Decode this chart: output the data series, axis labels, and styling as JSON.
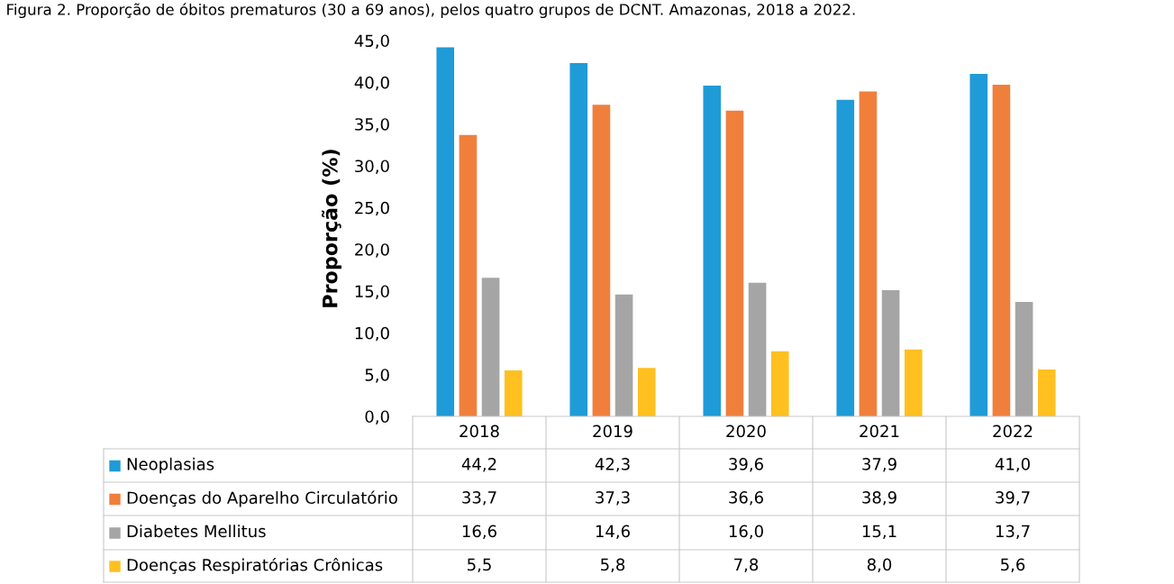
{
  "chart_data": {
    "type": "bar",
    "title": "Figura 2. Proporção de óbitos prematuros (30 a 69 anos), pelos quatro grupos de DCNT. Amazonas, 2018 a 2022.",
    "ylabel": "Proporção (%)",
    "categories": [
      "2018",
      "2019",
      "2020",
      "2021",
      "2022"
    ],
    "series": [
      {
        "name": "Neoplasias",
        "color": "#1f9bd7",
        "values": [
          44.2,
          42.3,
          39.6,
          37.9,
          41.0
        ],
        "value_labels": [
          "44,2",
          "42,3",
          "39,6",
          "37,9",
          "41,0"
        ]
      },
      {
        "name": "Doenças do Aparelho Circulatório",
        "color": "#f07f3c",
        "values": [
          33.7,
          37.3,
          36.6,
          38.9,
          39.7
        ],
        "value_labels": [
          "33,7",
          "37,3",
          "36,6",
          "38,9",
          "39,7"
        ]
      },
      {
        "name": "Diabetes Mellitus",
        "color": "#a5a5a5",
        "values": [
          16.6,
          14.6,
          16.0,
          15.1,
          13.7
        ],
        "value_labels": [
          "16,6",
          "14,6",
          "16,0",
          "15,1",
          "13,7"
        ]
      },
      {
        "name": "Doenças Respiratórias Crônicas",
        "color": "#ffc020",
        "values": [
          5.5,
          5.8,
          7.8,
          8.0,
          5.6
        ],
        "value_labels": [
          "5,5",
          "5,8",
          "7,8",
          "8,0",
          "5,6"
        ]
      }
    ],
    "ylim": [
      0,
      45
    ],
    "yticks": [
      {
        "value": 0,
        "label": "0,0"
      },
      {
        "value": 5,
        "label": "5,0"
      },
      {
        "value": 10,
        "label": "10,0"
      },
      {
        "value": 15,
        "label": "15,0"
      },
      {
        "value": 20,
        "label": "20,0"
      },
      {
        "value": 25,
        "label": "25,0"
      },
      {
        "value": 30,
        "label": "30,0"
      },
      {
        "value": 35,
        "label": "35,0"
      },
      {
        "value": 40,
        "label": "40,0"
      },
      {
        "value": 45,
        "label": "45,0"
      }
    ],
    "legend": "bottom left",
    "grid": false
  }
}
